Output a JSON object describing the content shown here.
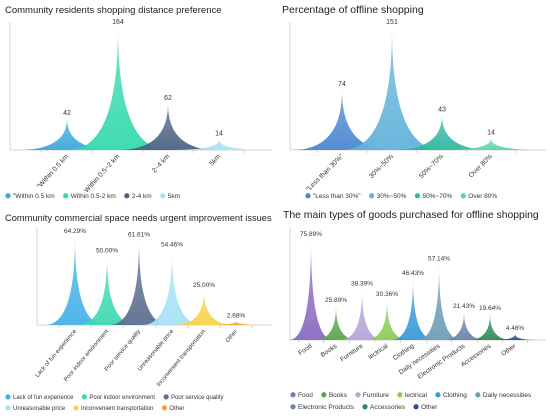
{
  "chart_data": [
    {
      "type": "bar",
      "title": "Community residents shopping distance preference",
      "categories": [
        "\"Within 0.5 km",
        "Within 0.5~2 km",
        "2~4 km",
        "5km"
      ],
      "values": [
        42,
        164,
        62,
        14
      ],
      "value_labels": [
        "42",
        "164",
        "62",
        "14"
      ],
      "legend": [
        "\"Within 0.5 km",
        "Within 0.5-2 km",
        "2-4 km",
        "5km"
      ],
      "colors": [
        "#3ea8da",
        "#36d9ae",
        "#4e6284",
        "#a8e3f4"
      ],
      "grid": false,
      "legend_placement": "bottom"
    },
    {
      "type": "bar",
      "title": "Percentage of offline shopping",
      "categories": [
        "\"Less than 30%\"",
        "30%~50%",
        "50%~70%",
        "Over 80%"
      ],
      "values": [
        74,
        151,
        43,
        14
      ],
      "value_labels": [
        "74",
        "151",
        "43",
        "14"
      ],
      "legend": [
        "\"Less than 30%\"",
        "30%~50%",
        "50%~70%",
        "Over 80%"
      ],
      "colors": [
        "#4a88d0",
        "#62b3db",
        "#30b79f",
        "#5ed4ac"
      ],
      "grid": false,
      "legend_placement": "bottom"
    },
    {
      "type": "bar",
      "title": "Community commercial space needs urgent improvement issues",
      "categories": [
        "Lack of fun experience",
        "Poor indoor environment",
        "Poor service quality",
        "Unreasonable price",
        "Inconvenient transportation",
        "Other"
      ],
      "values": [
        64.29,
        50.0,
        61.61,
        54.46,
        25.0,
        2.68
      ],
      "value_labels": [
        "64.29%",
        "50.00%",
        "61.61%",
        "54.46%",
        "25.00%",
        "2.68%"
      ],
      "legend": [
        "Lack of fun experience",
        "Poor indoor environment",
        "Poor service quality",
        "Unreasonable price",
        "Inconvenient transportation",
        "Other"
      ],
      "colors": [
        "#45b2e8",
        "#40d8b4",
        "#5c6f8e",
        "#a7e2f5",
        "#f6d44b",
        "#f2a33a"
      ],
      "grid": false,
      "legend_placement": "bottom"
    },
    {
      "type": "bar",
      "title": "The main types of goods purchased for offline shopping",
      "categories": [
        "Food",
        "Books",
        "Furniture",
        "lectrical",
        "Clothing",
        "Daily necessities",
        "Electronic Products",
        "Accessories",
        "Other"
      ],
      "values": [
        75.89,
        25.89,
        38.39,
        30.36,
        46.43,
        57.14,
        21.43,
        19.64,
        4.46
      ],
      "value_labels": [
        "75.89%",
        "25.89%",
        "38.39%",
        "30.36%",
        "46.43%",
        "57.14%",
        "21.43%",
        "19.64%",
        "4.46%"
      ],
      "legend": [
        "Food",
        "Books",
        "Furniture",
        "lectrical",
        "Clothing",
        "Daily necessities",
        "Electronic Products",
        "Accessories",
        "Other"
      ],
      "colors": [
        "#8b6cc0",
        "#5aa64b",
        "#b8a4d9",
        "#8dcc58",
        "#3b99d9",
        "#6e9fb3",
        "#6b84a9",
        "#2f8b5b",
        "#2f4c8b"
      ],
      "grid": false,
      "legend_placement": "bottom"
    }
  ]
}
